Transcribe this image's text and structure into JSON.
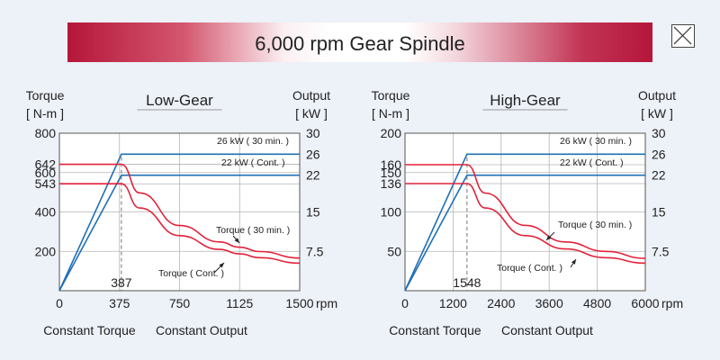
{
  "page": {
    "title": "6,000 rpm Gear Spindle",
    "close_icon": "close-icon"
  },
  "chart_data": [
    {
      "type": "line",
      "title": "Low-Gear",
      "ylabel": "Torque",
      "yunit": "[ N-m ]",
      "y2label": "Output",
      "y2unit": "[ kW ]",
      "xunit": "rpm",
      "xlim": [
        0,
        1500
      ],
      "ylim": [
        0,
        800
      ],
      "y2lim": [
        0,
        30
      ],
      "x_ticks": [
        "0",
        "375",
        "750",
        "1125",
        "1500"
      ],
      "y_ticks": [
        "800",
        "642",
        "600",
        "543",
        "400",
        "200"
      ],
      "y2_ticks": [
        "30",
        "26",
        "22",
        "15",
        "7.5"
      ],
      "base_speed": 387,
      "base_speed_label": "387",
      "region_labels": [
        "Constant Torque",
        "Constant Output"
      ],
      "series": [
        {
          "name": "26 kW ( 30 min. )",
          "kind": "output",
          "max_value": 26,
          "color": "#1f6fb6",
          "x": [
            0,
            387,
            1500
          ],
          "y": [
            0,
            26,
            26
          ]
        },
        {
          "name": "22 kW ( Cont. )",
          "kind": "output",
          "max_value": 22,
          "color": "#1f6fb6",
          "x": [
            0,
            387,
            1500
          ],
          "y": [
            0,
            22,
            22
          ]
        },
        {
          "name": "Torque ( 30 min. )",
          "kind": "torque",
          "max_value": 642,
          "color": "#e2223a",
          "x": [
            0,
            387,
            500,
            750,
            1000,
            1125,
            1250,
            1500
          ],
          "y": [
            642,
            642,
            497,
            331,
            248,
            221,
            199,
            166
          ]
        },
        {
          "name": "Torque ( Cont. )",
          "kind": "torque",
          "max_value": 543,
          "color": "#e2223a",
          "x": [
            0,
            387,
            500,
            750,
            1000,
            1125,
            1250,
            1500
          ],
          "y": [
            543,
            543,
            420,
            280,
            210,
            187,
            168,
            140
          ]
        }
      ]
    },
    {
      "type": "line",
      "title": "High-Gear",
      "ylabel": "Torque",
      "yunit": "[ N-m ]",
      "y2label": "Output",
      "y2unit": "[ kW ]",
      "xunit": "rpm",
      "xlim": [
        0,
        6000
      ],
      "ylim": [
        0,
        200
      ],
      "y2lim": [
        0,
        30
      ],
      "x_ticks": [
        "0",
        "1200",
        "2400",
        "3600",
        "4800",
        "6000"
      ],
      "y_ticks": [
        "200",
        "160",
        "150",
        "136",
        "100",
        "50"
      ],
      "y2_ticks": [
        "30",
        "26",
        "22",
        "15",
        "7.5"
      ],
      "base_speed": 1548,
      "base_speed_label": "1548",
      "region_labels": [
        "Constant Torque",
        "Constant Output"
      ],
      "series": [
        {
          "name": "26 kW ( 30 min. )",
          "kind": "output",
          "max_value": 26,
          "color": "#1f6fb6",
          "x": [
            0,
            1548,
            6000
          ],
          "y": [
            0,
            26,
            26
          ]
        },
        {
          "name": "22 kW ( Cont. )",
          "kind": "output",
          "max_value": 22,
          "color": "#1f6fb6",
          "x": [
            0,
            1548,
            6000
          ],
          "y": [
            0,
            22,
            22
          ]
        },
        {
          "name": "Torque ( 30 min. )",
          "kind": "torque",
          "max_value": 160,
          "color": "#e2223a",
          "x": [
            0,
            1548,
            2000,
            3000,
            4000,
            5000,
            6000
          ],
          "y": [
            160,
            160,
            124,
            83,
            62,
            50,
            41
          ]
        },
        {
          "name": "Torque ( Cont. )",
          "kind": "torque",
          "max_value": 136,
          "color": "#e2223a",
          "x": [
            0,
            1548,
            2000,
            3000,
            4000,
            5000,
            6000
          ],
          "y": [
            136,
            136,
            105,
            70,
            53,
            42,
            35
          ]
        }
      ]
    }
  ]
}
